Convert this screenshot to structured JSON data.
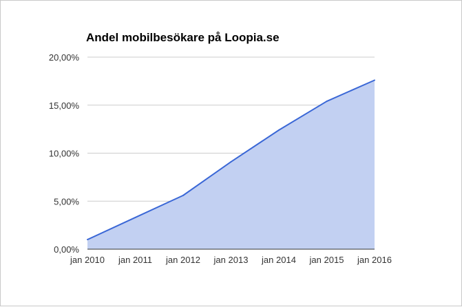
{
  "chart_data": {
    "type": "area",
    "title": "Andel mobilbesökare på Loopia.se",
    "xlabel": "",
    "ylabel": "",
    "x": [
      "jan 2010",
      "jan 2011",
      "jan 2012",
      "jan 2013",
      "jan 2014",
      "jan 2015",
      "jan 2016"
    ],
    "series": [
      {
        "values": [
          1.0,
          3.3,
          5.6,
          9.1,
          12.4,
          15.4,
          17.6
        ]
      }
    ],
    "ylim": [
      0,
      20
    ],
    "yticks": [
      "0,00%",
      "5,00%",
      "10,00%",
      "15,00%",
      "20,00%"
    ],
    "grid": true,
    "legend": "none",
    "colors": {
      "line": "#3a67d6",
      "fill": "#c2d0f2",
      "grid": "#cccccc",
      "axis": "#333333"
    }
  }
}
